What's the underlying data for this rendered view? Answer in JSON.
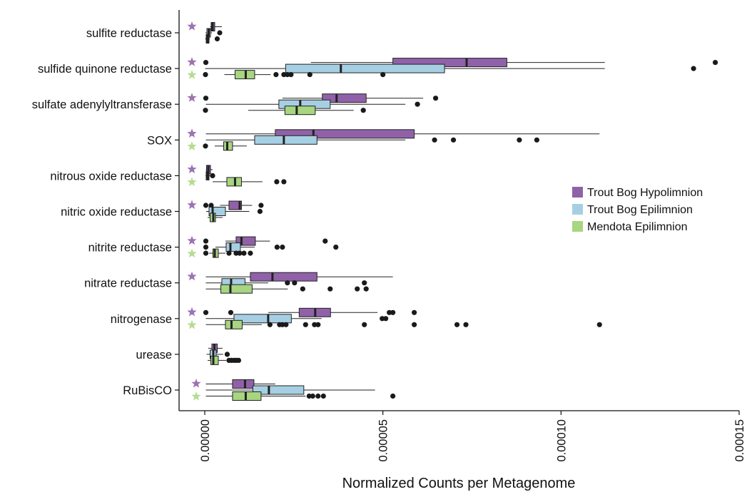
{
  "chart_data": {
    "type": "boxplot",
    "orientation": "horizontal",
    "title": "",
    "xlabel": "Normalized Counts per Metagenome",
    "ylabel": "",
    "xlim": [
      0,
      0.00015
    ],
    "x_ticks": [
      {
        "value": 0,
        "label": "0.00000"
      },
      {
        "value": 5e-05,
        "label": "0.00005"
      },
      {
        "value": 0.0001,
        "label": "0.00010"
      },
      {
        "value": 0.00015,
        "label": "0.00015"
      }
    ],
    "legend": {
      "placement": "right",
      "entries": [
        {
          "name": "Trout Bog Hypolimnion",
          "color": "#9061a8"
        },
        {
          "name": "Trout Bog Epilimnion",
          "color": "#a6cfe3"
        },
        {
          "name": "Mendota Epilimnion",
          "color": "#a7d580"
        }
      ]
    },
    "star_colors": {
      "Trout Bog Hypolimnion": "#9e72b3",
      "Mendota Epilimnion": "#b6dc93"
    },
    "categories": [
      {
        "label": "sulfite reductase",
        "stars": [
          "Trout Bog Hypolimnion"
        ],
        "boxes": [
          {
            "series": "Trout Bog Hypolimnion",
            "q1": 1.8e-06,
            "med": 2.2e-06,
            "q3": 2.8e-06,
            "wlo": 1.5e-06,
            "whi": 4.8e-06,
            "out": []
          },
          {
            "series": "Trout Bog Epilimnion",
            "q1": 6e-07,
            "med": 1.1e-06,
            "q3": 1.6e-06,
            "wlo": 2e-07,
            "whi": 2e-06,
            "out": [
              4.2e-06
            ]
          },
          {
            "series": "Mendota Epilimnion",
            "q1": 4e-07,
            "med": 8e-07,
            "q3": 1.2e-06,
            "wlo": 1e-07,
            "whi": 1.4e-06,
            "out": [
              3.5e-06
            ]
          }
        ]
      },
      {
        "label": "sulfide quinone reductase",
        "stars": [
          "Trout Bog Hypolimnion",
          "Mendota Epilimnion"
        ],
        "boxes": [
          {
            "series": "Trout Bog Hypolimnion",
            "q1": 5.28e-05,
            "med": 7.35e-05,
            "q3": 8.48e-05,
            "wlo": 2.98e-05,
            "whi": 0.0001123,
            "out": [
              3e-07,
              0.0001433
            ]
          },
          {
            "series": "Trout Bog Epilimnion",
            "q1": 2.27e-05,
            "med": 3.82e-05,
            "q3": 6.73e-05,
            "wlo": 1e-07,
            "whi": 0.0001123,
            "out": [
              0.0001372
            ]
          },
          {
            "series": "Mendota Epilimnion",
            "q1": 8.5e-06,
            "med": 1.15e-05,
            "q3": 1.4e-05,
            "wlo": 5.5e-06,
            "whi": 1.85e-05,
            "out": [
              2e-07,
              2e-05,
              2.22e-05,
              2.32e-05,
              2.42e-05,
              2.95e-05,
              5e-05
            ]
          }
        ]
      },
      {
        "label": "sulfate adenylyltransferase",
        "stars": [
          "Trout Bog Hypolimnion"
        ],
        "boxes": [
          {
            "series": "Trout Bog Hypolimnion",
            "q1": 3.3e-05,
            "med": 3.7e-05,
            "q3": 4.53e-05,
            "wlo": 2.18e-05,
            "whi": 6.13e-05,
            "out": [
              3e-07,
              6.48e-05
            ]
          },
          {
            "series": "Trout Bog Epilimnion",
            "q1": 2.08e-05,
            "med": 2.68e-05,
            "q3": 3.52e-05,
            "wlo": 3e-07,
            "whi": 5.63e-05,
            "out": [
              5.97e-05
            ]
          },
          {
            "series": "Mendota Epilimnion",
            "q1": 2.25e-05,
            "med": 2.58e-05,
            "q3": 3.1e-05,
            "wlo": 1.22e-05,
            "whi": 4.18e-05,
            "out": [
              2e-07,
              4.45e-05
            ]
          }
        ]
      },
      {
        "label": "SOX",
        "stars": [
          "Trout Bog Hypolimnion",
          "Mendota Epilimnion"
        ],
        "boxes": [
          {
            "series": "Trout Bog Hypolimnion",
            "q1": 1.98e-05,
            "med": 3.05e-05,
            "q3": 5.88e-05,
            "wlo": 3e-07,
            "whi": 0.0001108,
            "out": []
          },
          {
            "series": "Trout Bog Epilimnion",
            "q1": 1.4e-05,
            "med": 2.22e-05,
            "q3": 3.15e-05,
            "wlo": 3e-07,
            "whi": 5.63e-05,
            "out": [
              6.45e-05,
              6.98e-05,
              8.83e-05,
              9.32e-05
            ]
          },
          {
            "series": "Mendota Epilimnion",
            "q1": 5.3e-06,
            "med": 6.3e-06,
            "q3": 7.8e-06,
            "wlo": 2.8e-06,
            "whi": 1.18e-05,
            "out": [
              2e-07
            ]
          }
        ]
      },
      {
        "label": "nitrous oxide reductase",
        "stars": [
          "Trout Bog Hypolimnion",
          "Mendota Epilimnion"
        ],
        "boxes": [
          {
            "series": "Trout Bog Hypolimnion",
            "q1": 5e-07,
            "med": 1e-06,
            "q3": 1.6e-06,
            "wlo": 3e-07,
            "whi": 2.2e-06,
            "out": []
          },
          {
            "series": "Trout Bog Epilimnion",
            "q1": 4e-07,
            "med": 8e-07,
            "q3": 1.2e-06,
            "wlo": 2e-07,
            "whi": 1.6e-06,
            "out": [
              2.2e-06
            ]
          },
          {
            "series": "Mendota Epilimnion",
            "q1": 6.2e-06,
            "med": 8.5e-06,
            "q3": 1.03e-05,
            "wlo": 2.2e-06,
            "whi": 1.62e-05,
            "out": [
              2.02e-05,
              2.22e-05
            ]
          }
        ]
      },
      {
        "label": "nitric oxide reductase",
        "stars": [
          "Trout Bog Hypolimnion"
        ],
        "boxes": [
          {
            "series": "Trout Bog Hypolimnion",
            "q1": 6.8e-06,
            "med": 9.8e-06,
            "q3": 1.03e-05,
            "wlo": 4.3e-06,
            "whi": 1.33e-05,
            "out": [
              3e-07,
              1.8e-06,
              1.58e-05
            ]
          },
          {
            "series": "Trout Bog Epilimnion",
            "q1": 1.2e-06,
            "med": 2.2e-06,
            "q3": 5.8e-06,
            "wlo": 4e-07,
            "whi": 1.25e-05,
            "out": [
              1.55e-05
            ]
          },
          {
            "series": "Mendota Epilimnion",
            "q1": 1.5e-06,
            "med": 2.4e-06,
            "q3": 3e-06,
            "wlo": 8e-07,
            "whi": 5e-06,
            "out": []
          }
        ]
      },
      {
        "label": "nitrite reductase",
        "stars": [
          "Trout Bog Hypolimnion",
          "Mendota Epilimnion"
        ],
        "boxes": [
          {
            "series": "Trout Bog Hypolimnion",
            "q1": 8.8e-06,
            "med": 1.03e-05,
            "q3": 1.42e-05,
            "wlo": 5.8e-06,
            "whi": 1.83e-05,
            "out": [
              3e-07,
              3.38e-05
            ]
          },
          {
            "series": "Trout Bog Epilimnion",
            "q1": 6e-06,
            "med": 7.2e-06,
            "q3": 1e-05,
            "wlo": 3e-06,
            "whi": 1.4e-05,
            "out": [
              3e-07,
              2.03e-05,
              2.18e-05,
              3.68e-05
            ]
          },
          {
            "series": "Mendota Epilimnion",
            "q1": 2.3e-06,
            "med": 2.8e-06,
            "q3": 3.8e-06,
            "wlo": 1.2e-06,
            "whi": 5.8e-06,
            "out": [
              3e-07,
              6.8e-06,
              8.8e-06,
              9.8e-06,
              1.1e-05,
              1.28e-05
            ]
          }
        ]
      },
      {
        "label": "nitrate reductase",
        "stars": [
          "Trout Bog Hypolimnion"
        ],
        "boxes": [
          {
            "series": "Trout Bog Hypolimnion",
            "q1": 1.28e-05,
            "med": 1.9e-05,
            "q3": 3.15e-05,
            "wlo": 3e-07,
            "whi": 5.28e-05,
            "out": []
          },
          {
            "series": "Trout Bog Epilimnion",
            "q1": 4.8e-06,
            "med": 7.4e-06,
            "q3": 1.13e-05,
            "wlo": 3e-07,
            "whi": 1.78e-05,
            "out": [
              2.32e-05,
              2.52e-05,
              4.48e-05
            ]
          },
          {
            "series": "Mendota Epilimnion",
            "q1": 4.5e-06,
            "med": 7.2e-06,
            "q3": 1.33e-05,
            "wlo": 3e-07,
            "whi": 2.33e-05,
            "out": [
              2.75e-05,
              3.52e-05,
              4.28e-05,
              4.53e-05
            ]
          }
        ]
      },
      {
        "label": "nitrogenase",
        "stars": [
          "Trout Bog Hypolimnion",
          "Mendota Epilimnion"
        ],
        "boxes": [
          {
            "series": "Trout Bog Hypolimnion",
            "q1": 2.65e-05,
            "med": 3.1e-05,
            "q3": 3.53e-05,
            "wlo": 1.78e-05,
            "whi": 4.85e-05,
            "out": [
              3e-07,
              7.3e-06,
              5.18e-05,
              5.28e-05,
              5.88e-05
            ]
          },
          {
            "series": "Trout Bog Epilimnion",
            "q1": 8.2e-06,
            "med": 1.78e-05,
            "q3": 2.43e-05,
            "wlo": 3e-07,
            "whi": 3.28e-05,
            "out": [
              4.98e-05,
              5.08e-05
            ]
          },
          {
            "series": "Mendota Epilimnion",
            "q1": 5.8e-06,
            "med": 7.5e-06,
            "q3": 1.05e-05,
            "wlo": 3e-07,
            "whi": 1.6e-05,
            "out": [
              1.83e-05,
              2.1e-05,
              2.18e-05,
              2.28e-05,
              2.83e-05,
              3.08e-05,
              3.18e-05,
              4.48e-05,
              5.88e-05,
              7.08e-05,
              7.33e-05,
              0.0001108
            ]
          }
        ]
      },
      {
        "label": "urease",
        "stars": [],
        "boxes": [
          {
            "series": "Trout Bog Hypolimnion",
            "q1": 2e-06,
            "med": 2.7e-06,
            "q3": 3.5e-06,
            "wlo": 1e-06,
            "whi": 5e-06,
            "out": []
          },
          {
            "series": "Trout Bog Epilimnion",
            "q1": 1.5e-06,
            "med": 2.4e-06,
            "q3": 3.2e-06,
            "wlo": 5e-07,
            "whi": 5.2e-06,
            "out": [
              6.3e-06
            ]
          },
          {
            "series": "Mendota Epilimnion",
            "q1": 1.7e-06,
            "med": 2.4e-06,
            "q3": 3.8e-06,
            "wlo": 8e-07,
            "whi": 6e-06,
            "out": [
              6.8e-06,
              7.5e-06,
              8.2e-06,
              8.8e-06,
              9.5e-06
            ]
          }
        ]
      },
      {
        "label": "RuBisCO",
        "stars": [
          "Trout Bog Hypolimnion",
          "Mendota Epilimnion"
        ],
        "boxes": [
          {
            "series": "Trout Bog Hypolimnion",
            "q1": 7.8e-06,
            "med": 1.13e-05,
            "q3": 1.38e-05,
            "wlo": 3e-07,
            "whi": 1.98e-05,
            "out": []
          },
          {
            "series": "Trout Bog Epilimnion",
            "q1": 1.35e-05,
            "med": 1.8e-05,
            "q3": 2.78e-05,
            "wlo": 3e-07,
            "whi": 4.78e-05,
            "out": []
          },
          {
            "series": "Mendota Epilimnion",
            "q1": 7.8e-06,
            "med": 1.15e-05,
            "q3": 1.58e-05,
            "wlo": 3e-07,
            "whi": 2.83e-05,
            "out": [
              2.93e-05,
              3.03e-05,
              3.18e-05,
              3.33e-05,
              5.28e-05
            ]
          }
        ]
      }
    ]
  }
}
